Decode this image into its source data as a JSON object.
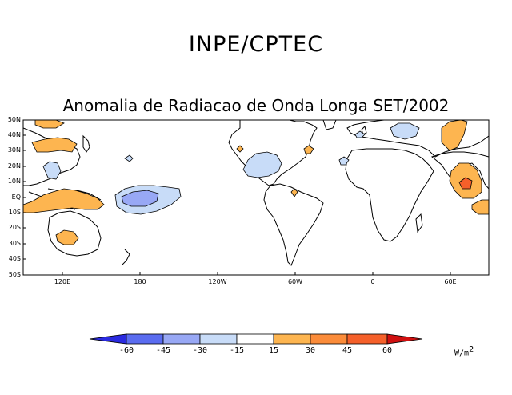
{
  "header": {
    "organization": "INPE/CPTEC",
    "map_title": "Anomalia de Radiacao de Onda Longa SET/2002"
  },
  "map": {
    "latitude_labels": [
      "50N",
      "40N",
      "30N",
      "20N",
      "10N",
      "EQ",
      "10S",
      "20S",
      "30S",
      "40S",
      "50S"
    ],
    "longitude_labels": [
      "120E",
      "180",
      "120W",
      "60W",
      "0",
      "60E"
    ]
  },
  "colorbar": {
    "ticks": [
      "-60",
      "-45",
      "-30",
      "-15",
      "15",
      "30",
      "45",
      "60"
    ],
    "unit_base": "W/m",
    "unit_exp": "2",
    "colors": [
      "#2a2ae0",
      "#5a6cf0",
      "#98a8f5",
      "#c8dcf8",
      "#ffffff",
      "#fdb550",
      "#fb8c3a",
      "#f5602a",
      "#d01010"
    ]
  }
}
